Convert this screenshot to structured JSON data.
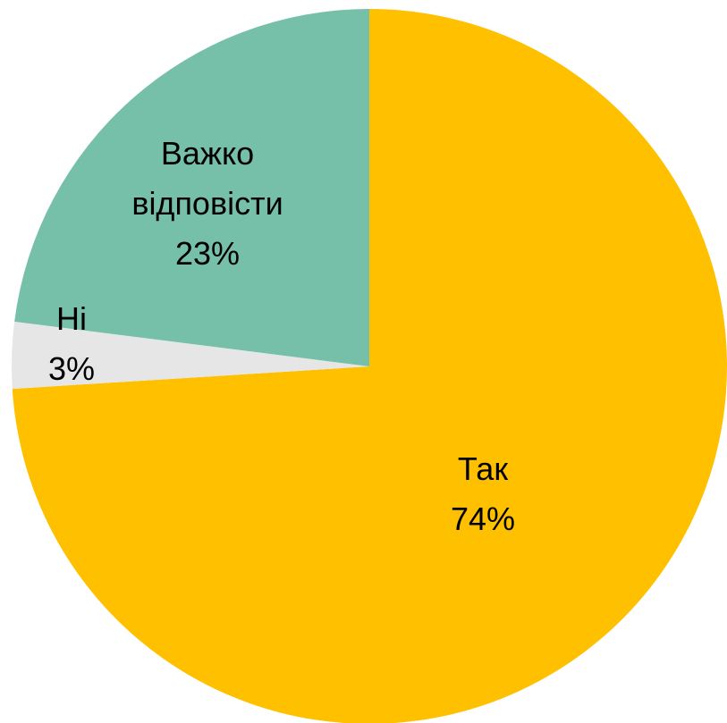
{
  "chart_data": {
    "type": "pie",
    "categories": [
      "Так",
      "Ні",
      "Важко відповісти"
    ],
    "values": [
      74,
      3,
      23
    ],
    "value_labels": [
      "74%",
      "3%",
      "23%"
    ],
    "colors": [
      "#FFC000",
      "#E6E6E6",
      "#76BFA9"
    ]
  }
}
